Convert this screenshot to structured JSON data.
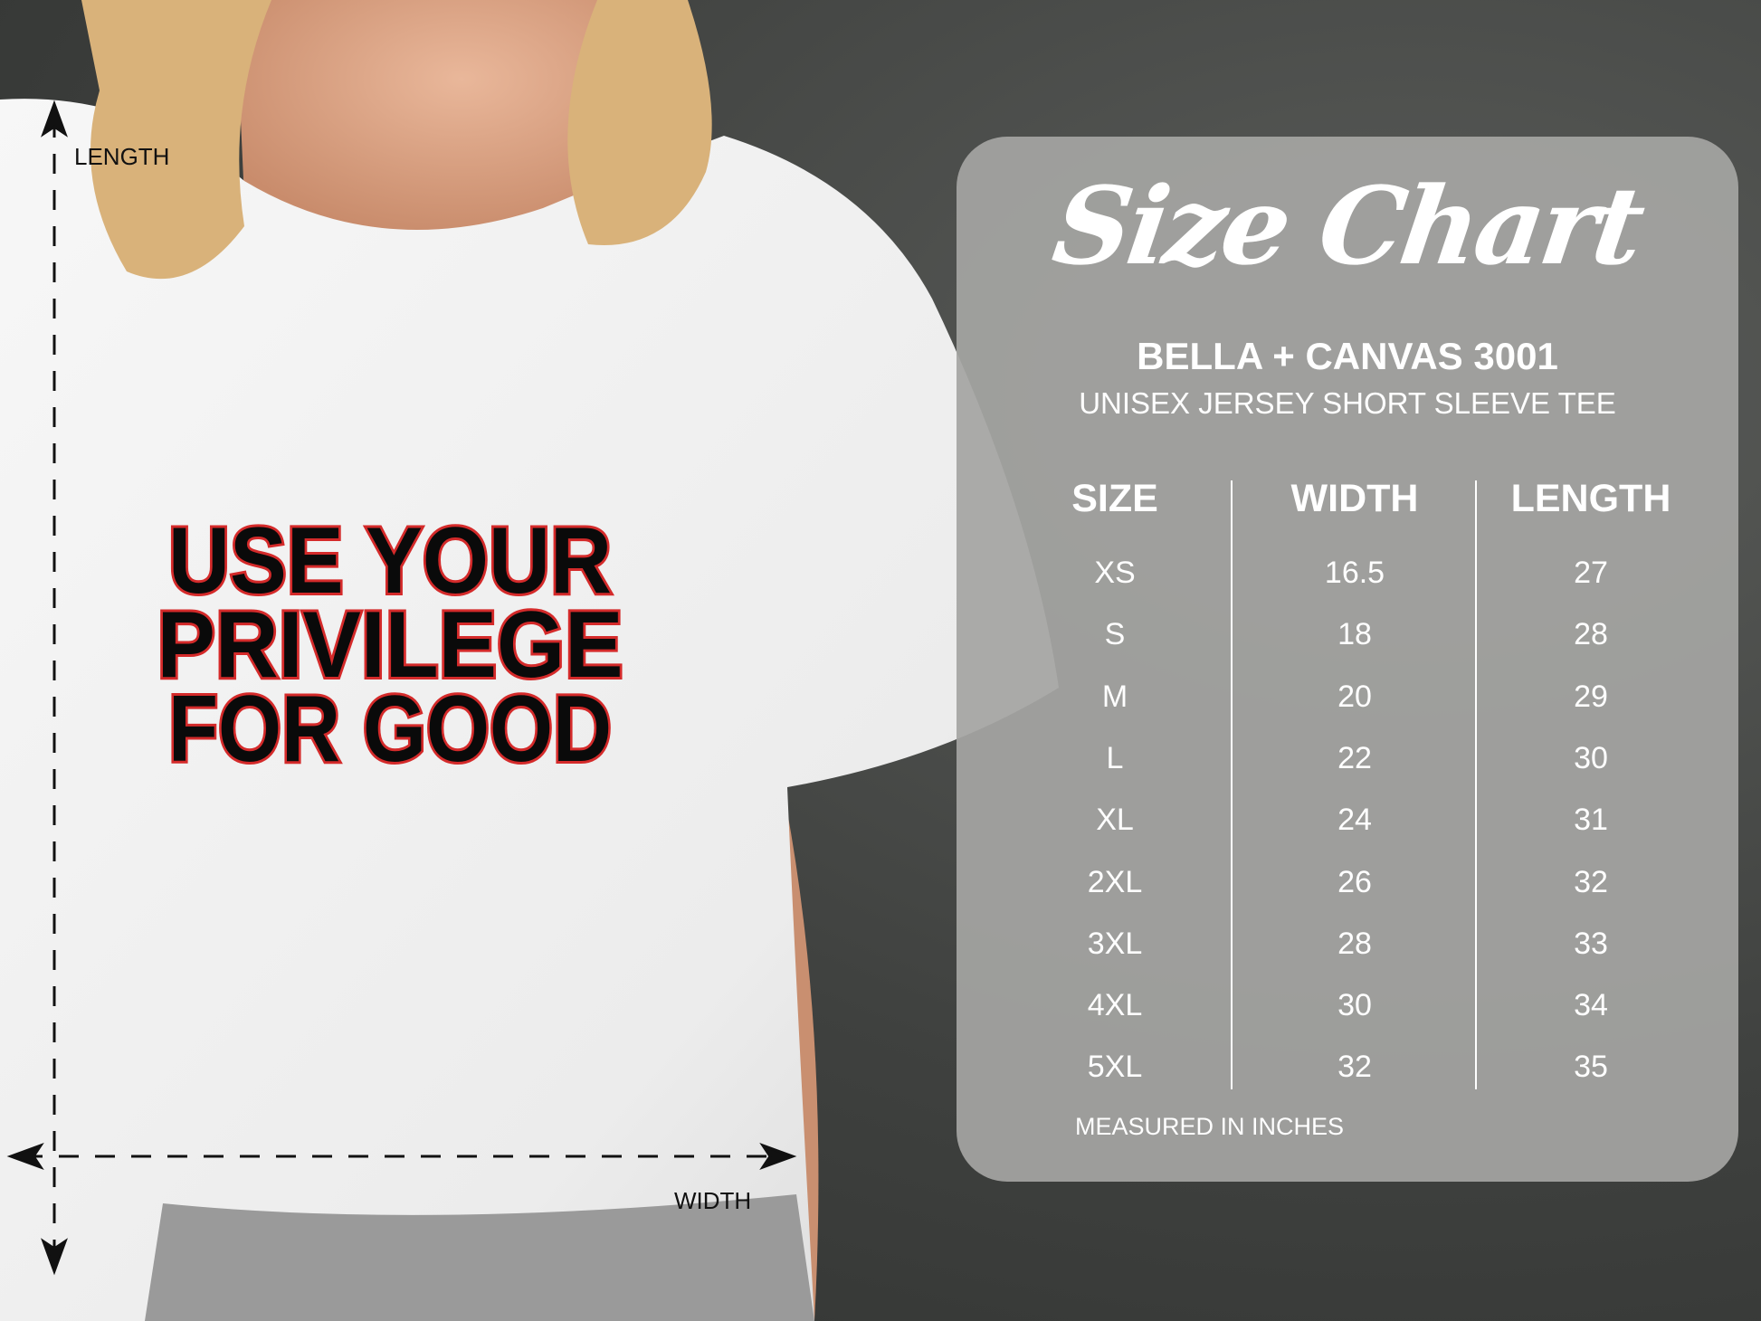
{
  "shirt": {
    "slogan": [
      "USE YOUR",
      "PRIVILEGE",
      "FOR GOOD"
    ],
    "slogan_colors": {
      "fill": "#0a0a0a",
      "outline": "#d42a2a",
      "highlight": "#f2f2f2"
    }
  },
  "measure": {
    "length_label": "LENGTH",
    "width_label": "WIDTH"
  },
  "chart": {
    "title": "Size Chart",
    "brand": "BELLA + CANVAS 3001",
    "product": "UNISEX JERSEY SHORT SLEEVE TEE",
    "headers": [
      "SIZE",
      "WIDTH",
      "LENGTH"
    ],
    "rows": [
      [
        "XS",
        "16.5",
        "27"
      ],
      [
        "S",
        "18",
        "28"
      ],
      [
        "M",
        "20",
        "29"
      ],
      [
        "L",
        "22",
        "30"
      ],
      [
        "XL",
        "24",
        "31"
      ],
      [
        "2XL",
        "26",
        "32"
      ],
      [
        "3XL",
        "28",
        "33"
      ],
      [
        "4XL",
        "30",
        "34"
      ],
      [
        "5XL",
        "32",
        "35"
      ]
    ],
    "footnote": "MEASURED IN INCHES"
  }
}
